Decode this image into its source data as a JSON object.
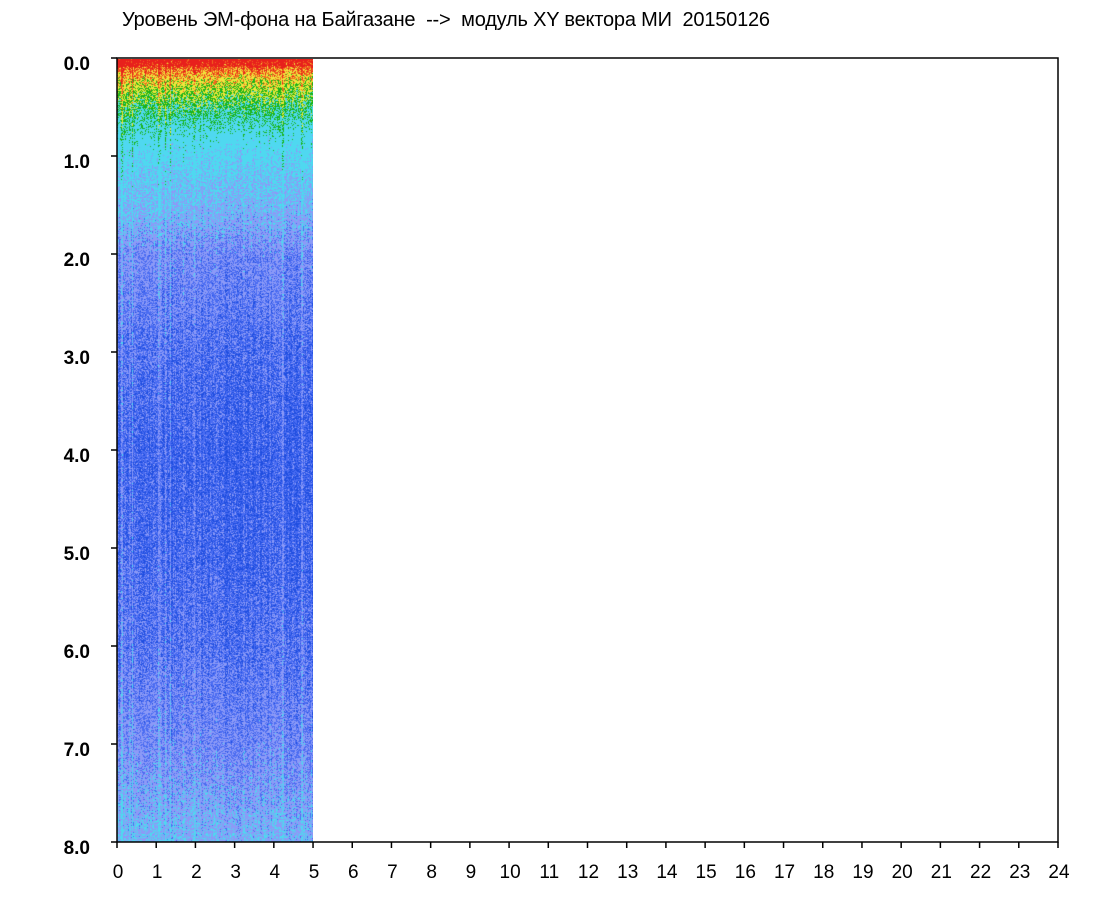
{
  "chart_data": {
    "type": "heatmap",
    "title": "Уровень ЭМ-фона на Байгазане  -->  модуль XY вектора МИ  20150126",
    "xlabel": "",
    "ylabel": "",
    "x_ticks": [
      "0",
      "1",
      "2",
      "3",
      "4",
      "5",
      "6",
      "7",
      "8",
      "9",
      "10",
      "11",
      "12",
      "13",
      "14",
      "15",
      "16",
      "17",
      "18",
      "19",
      "20",
      "21",
      "22",
      "23",
      "24"
    ],
    "y_ticks": [
      "0.0",
      "1.0",
      "2.0",
      "3.0",
      "4.0",
      "5.0",
      "6.0",
      "7.0",
      "8.0"
    ],
    "xlim": [
      0,
      24
    ],
    "ylim": [
      0,
      8
    ],
    "y_inverted": true,
    "data_x_range": [
      0,
      5
    ],
    "colormap": [
      "#ffffff",
      "#1f4ee0",
      "#4a6cf2",
      "#8c9af7",
      "#4fd8f0",
      "#19b419",
      "#f0e63c",
      "#f06a1e",
      "#e8201c"
    ],
    "intensity_profile": {
      "y": [
        0.0,
        0.05,
        0.15,
        0.25,
        0.4,
        0.6,
        0.8,
        1.0,
        1.3,
        1.6,
        2.0,
        3.0,
        4.0,
        5.0,
        6.0,
        7.0,
        7.5,
        8.0
      ],
      "level": [
        0.95,
        0.88,
        0.78,
        0.7,
        0.62,
        0.52,
        0.45,
        0.4,
        0.34,
        0.29,
        0.2,
        0.13,
        0.1,
        0.11,
        0.14,
        0.2,
        0.25,
        0.3
      ]
    },
    "grid": false,
    "legend": "none"
  }
}
